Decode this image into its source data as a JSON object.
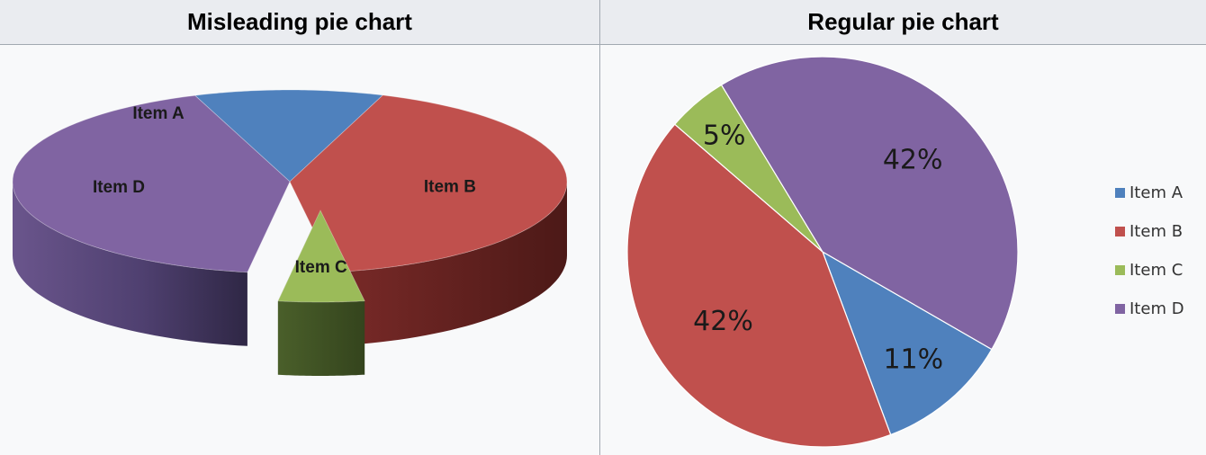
{
  "headers": {
    "left": "Misleading pie chart",
    "right": "Regular pie chart"
  },
  "chart_data": [
    {
      "type": "pie",
      "title": "Misleading pie chart",
      "style": "3d-exploded",
      "slices": [
        {
          "label": "Item A",
          "value": 11,
          "color": "#4f81bd"
        },
        {
          "label": "Item B",
          "value": 42,
          "color": "#c0504d"
        },
        {
          "label": "Item C",
          "value": 5,
          "color": "#9bbb59",
          "exploded": true
        },
        {
          "label": "Item D",
          "value": 42,
          "color": "#8064a2"
        }
      ]
    },
    {
      "type": "pie",
      "title": "Regular pie chart",
      "legend": "right",
      "slices": [
        {
          "label": "Item A",
          "value": 11,
          "data_label": "11%",
          "color": "#4f81bd"
        },
        {
          "label": "Item B",
          "value": 42,
          "data_label": "42%",
          "color": "#c0504d"
        },
        {
          "label": "Item C",
          "value": 5,
          "data_label": "5%",
          "color": "#9bbb59"
        },
        {
          "label": "Item D",
          "value": 42,
          "data_label": "42%",
          "color": "#8064a2"
        }
      ]
    }
  ]
}
